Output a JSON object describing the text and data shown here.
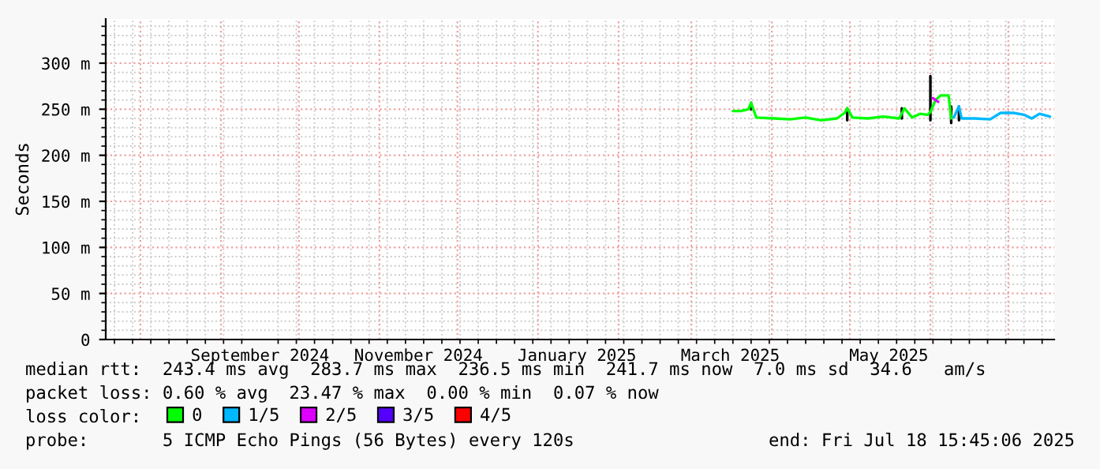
{
  "chart_data": {
    "type": "line",
    "ylabel": "Seconds",
    "xlim": [
      "2024-07-18T15:45",
      "2025-07-18T15:45"
    ],
    "xticks": [
      {
        "value": "2024-09-16",
        "label": "September 2024"
      },
      {
        "value": "2024-11-16",
        "label": "November 2024"
      },
      {
        "value": "2025-01-16",
        "label": "January 2025"
      },
      {
        "value": "2025-03-16",
        "label": "March 2025"
      },
      {
        "value": "2025-05-16",
        "label": "May 2025"
      }
    ],
    "ylim": [
      0,
      348
    ],
    "yticks": [
      0,
      {
        "value": 50,
        "label": "50 m"
      },
      {
        "value": 100,
        "label": "100 m"
      },
      {
        "value": 150,
        "label": "150 m"
      },
      {
        "value": 200,
        "label": "200 m"
      },
      {
        "value": 250,
        "label": "250 m"
      },
      {
        "value": 300,
        "label": "300 m"
      }
    ],
    "grid": true,
    "legend": "bottom",
    "legend_title": "loss color:",
    "series": [
      {
        "name": "0",
        "color": "#00ff00",
        "x": [
          "2025-03-17",
          "2025-03-20",
          "2025-03-23",
          "2025-03-24",
          "2025-03-26",
          "2025-04-02",
          "2025-04-08",
          "2025-04-14",
          "2025-04-20",
          "2025-04-26",
          "2025-04-29",
          "2025-04-30",
          "2025-05-02",
          "2025-05-08",
          "2025-05-14",
          "2025-05-20",
          "2025-05-22",
          "2025-05-25",
          "2025-05-28",
          "2025-05-31",
          "2025-06-01",
          "2025-06-03",
          "2025-06-05",
          "2025-06-08",
          "2025-06-09"
        ],
        "values": [
          248,
          248,
          250,
          257,
          241,
          240,
          239,
          241,
          238,
          240,
          246,
          251,
          241,
          240,
          242,
          240,
          251,
          241,
          245,
          244,
          247,
          260,
          265,
          265,
          240
        ]
      },
      {
        "name": "1/5",
        "color": "#00b8ff",
        "x": [
          "2025-06-10",
          "2025-06-12",
          "2025-06-13",
          "2025-06-18",
          "2025-06-24",
          "2025-06-28",
          "2025-07-03",
          "2025-07-07",
          "2025-07-10",
          "2025-07-13",
          "2025-07-17"
        ],
        "values": [
          241,
          253,
          240,
          240,
          239,
          246,
          246,
          244,
          240,
          245,
          242
        ]
      },
      {
        "name": "2/5",
        "color": "#dd00ff",
        "x": [
          "2025-06-02",
          "2025-06-04"
        ],
        "values": [
          262,
          258
        ]
      },
      {
        "name": "3/5",
        "color": "#5500ff"
      },
      {
        "name": "4/5",
        "color": "#ff0000"
      },
      {
        "color": "#000000",
        "x": [
          "2025-03-24",
          "2025-03-24",
          "2025-03-25",
          "2025-04-30",
          "2025-04-30",
          "2025-05-01",
          "2025-05-21",
          "2025-05-21",
          "2025-05-22",
          "2025-06-01",
          "2025-06-01",
          "2025-06-02",
          "2025-06-09",
          "2025-06-09",
          "2025-06-10",
          "2025-06-12",
          "2025-06-12"
        ],
        "values": [
          250,
          257,
          null,
          238,
          251,
          null,
          240,
          251,
          null,
          238,
          286,
          null,
          235,
          253,
          null,
          238,
          253
        ]
      }
    ],
    "annotations": [
      "median rtt:  243.4 ms avg  283.7 ms max  236.5 ms min  241.7 ms now  7.0 ms sd  34.6   am/s",
      "packet loss: 0.60 % avg  23.47 % max  0.00 % min  0.07 % now",
      "probe:       5 ICMP Echo Pings (56 Bytes) every 120s",
      "end: Fri Jul 18 15:45:06 2025"
    ]
  }
}
